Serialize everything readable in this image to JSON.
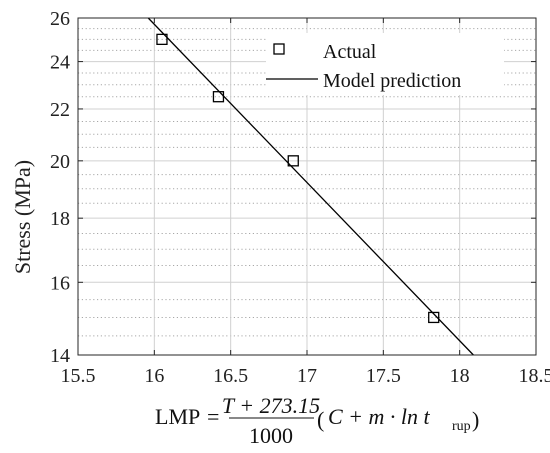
{
  "chart_data": {
    "type": "scatter",
    "xlim": [
      15.5,
      18.5
    ],
    "ylim": [
      14,
      26
    ],
    "y_scale": "log",
    "x_ticks": [
      15.5,
      16,
      16.5,
      17,
      17.5,
      18,
      18.5
    ],
    "x_tick_labels": [
      "15.5",
      "16",
      "16.5",
      "17",
      "17.5",
      "18",
      "18.5"
    ],
    "y_ticks": [
      14,
      16,
      18,
      20,
      22,
      24,
      26
    ],
    "y_tick_labels": [
      "14",
      "16",
      "18",
      "20",
      "22",
      "24",
      "26"
    ],
    "y_minor_grid": [
      14.5,
      15,
      15.5,
      16.5,
      17,
      17.5,
      18.5,
      19,
      19.5,
      20.5,
      21,
      21.5,
      22.5,
      23,
      23.5,
      24.5,
      25,
      25.5
    ],
    "grid": true,
    "ylabel": "Stress (MPa)",
    "legend_position": "top-right",
    "series": [
      {
        "name": "Actual",
        "kind": "marker",
        "marker": "square",
        "x": [
          16.05,
          16.42,
          16.91,
          17.83
        ],
        "y": [
          25.0,
          22.5,
          20.0,
          15.0
        ]
      },
      {
        "name": "Model prediction",
        "kind": "line",
        "x": [
          15.96,
          18.09
        ],
        "y": [
          26.0,
          14.0
        ]
      }
    ],
    "xlabel_formula": {
      "lhs": "LMP",
      "eq": "=",
      "numerator": "T + 273.15",
      "denominator": "1000",
      "open": "(",
      "body": "C + m · ln t",
      "subscript": "rup",
      "close": ")"
    }
  },
  "colors": {
    "axis": "#262626",
    "grid": "#d0d0d0",
    "minor_grid": "#a8a8a8",
    "series": "#000000"
  }
}
